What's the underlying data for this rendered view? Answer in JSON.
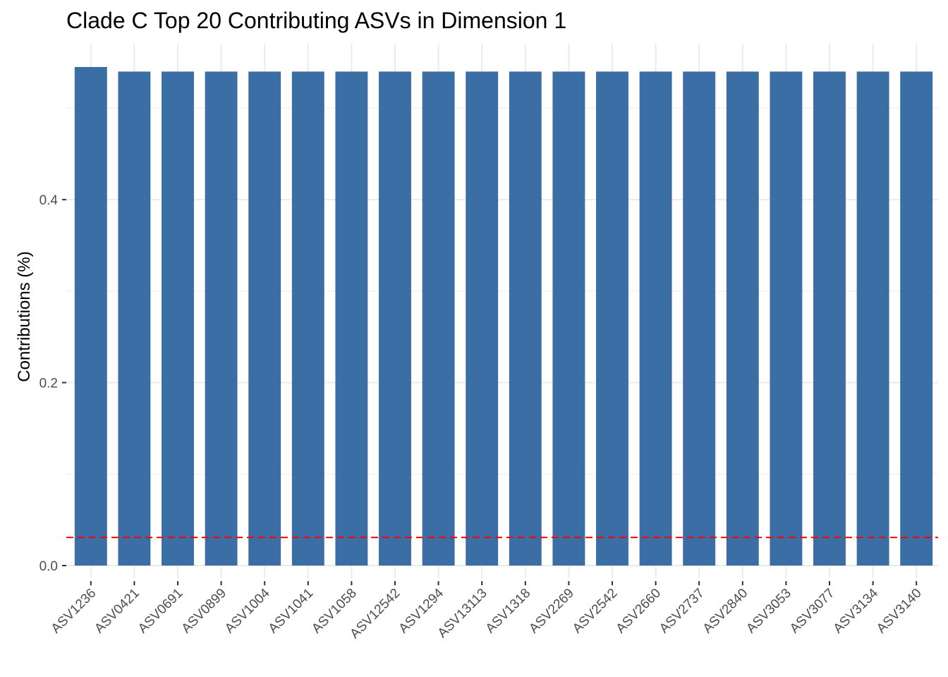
{
  "chart_data": {
    "type": "bar",
    "title": "Clade C Top 20 Contributing ASVs in Dimension 1",
    "xlabel": "",
    "ylabel": "Contributions (%)",
    "categories": [
      "ASV1236",
      "ASV0421",
      "ASV0691",
      "ASV0899",
      "ASV1004",
      "ASV1041",
      "ASV1058",
      "ASV12542",
      "ASV1294",
      "ASV13113",
      "ASV1318",
      "ASV2269",
      "ASV2542",
      "ASV2660",
      "ASV2737",
      "ASV2840",
      "ASV3053",
      "ASV3077",
      "ASV3134",
      "ASV3140"
    ],
    "values": [
      0.545,
      0.54,
      0.54,
      0.54,
      0.54,
      0.54,
      0.54,
      0.54,
      0.54,
      0.54,
      0.54,
      0.54,
      0.54,
      0.54,
      0.54,
      0.54,
      0.54,
      0.54,
      0.54,
      0.54
    ],
    "ylim": [
      0,
      0.545
    ],
    "yticks": [
      0.0,
      0.2,
      0.4
    ],
    "ytick_labels": [
      "0.0",
      "0.2",
      "0.4"
    ],
    "reference_line": {
      "value": 0.0307,
      "style": "dashed",
      "color": "#ff0000"
    },
    "bar_color": "#3a6ea5",
    "grid": true,
    "legend": "none"
  }
}
